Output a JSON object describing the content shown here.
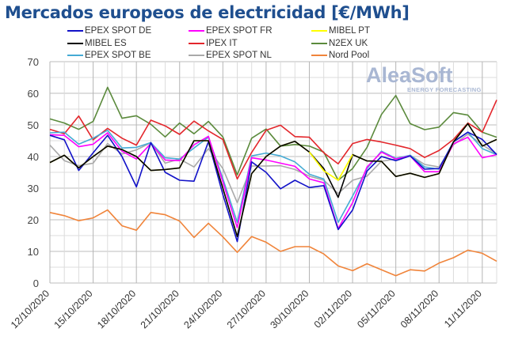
{
  "title": "Mercados europeos de electricidad [€/MWh]",
  "watermark": {
    "brand": "AleaSoft",
    "tagline": "ENERGY FORECASTING"
  },
  "chart_data": {
    "type": "line",
    "title": "Mercados europeos de electricidad [€/MWh]",
    "xlabel": "",
    "ylabel": "",
    "ylim": [
      0,
      70
    ],
    "yticks": [
      "0",
      "10",
      "20",
      "30",
      "40",
      "50",
      "60",
      "70"
    ],
    "grid": true,
    "legend_position": "top",
    "x": [
      "12/10/2020",
      "13/10/2020",
      "14/10/2020",
      "15/10/2020",
      "16/10/2020",
      "17/10/2020",
      "18/10/2020",
      "19/10/2020",
      "20/10/2020",
      "21/10/2020",
      "22/10/2020",
      "23/10/2020",
      "24/10/2020",
      "25/10/2020",
      "26/10/2020",
      "27/10/2020",
      "28/10/2020",
      "29/10/2020",
      "30/10/2020",
      "31/10/2020",
      "01/11/2020",
      "02/11/2020",
      "03/11/2020",
      "04/11/2020",
      "05/11/2020",
      "06/11/2020",
      "07/11/2020",
      "08/11/2020",
      "09/11/2020",
      "10/11/2020",
      "11/11/2020",
      "12/11/2020"
    ],
    "xtick_labels": [
      "12/10/2020",
      "15/10/2020",
      "18/10/2020",
      "21/10/2020",
      "24/10/2020",
      "27/10/2020",
      "30/10/2020",
      "02/11/2020",
      "05/11/2020",
      "08/11/2020",
      "11/11/2020"
    ],
    "series": [
      {
        "name": "EPEX SPOT DE",
        "color": "#1212c8",
        "values": [
          46.7,
          45.3,
          35.6,
          41.2,
          46.7,
          40.0,
          30.4,
          44.4,
          35.0,
          32.5,
          32.2,
          44.7,
          28.0,
          13.1,
          38.3,
          35.0,
          29.8,
          32.5,
          30.2,
          30.8,
          16.9,
          23.1,
          35.4,
          40.0,
          38.7,
          40.2,
          36.0,
          36.2,
          44.6,
          47.7,
          45.4,
          40.6
        ]
      },
      {
        "name": "EPEX SPOT FR",
        "color": "#ff00ff",
        "values": [
          46.9,
          46.7,
          43.1,
          43.9,
          47.5,
          41.7,
          39.2,
          44.1,
          38.9,
          38.7,
          43.7,
          46.4,
          32.0,
          17.5,
          39.6,
          38.9,
          37.9,
          36.9,
          32.9,
          31.7,
          17.2,
          25.4,
          36.7,
          41.4,
          39.2,
          40.2,
          35.2,
          35.2,
          44.0,
          46.1,
          39.6,
          40.6
        ]
      },
      {
        "name": "MIBEL PT",
        "color": "#ffff00",
        "values": [
          38.1,
          40.4,
          36.4,
          40.0,
          43.3,
          42.2,
          40.0,
          35.6,
          35.9,
          36.4,
          45.0,
          45.0,
          30.0,
          14.7,
          34.6,
          40.0,
          43.3,
          44.8,
          41.4,
          35.5,
          32.5,
          40.6,
          38.6,
          38.5,
          33.7,
          34.7,
          33.4,
          34.6,
          44.6,
          50.4,
          43.3,
          45.4
        ]
      },
      {
        "name": "MIBEL ES",
        "color": "#000000",
        "values": [
          38.1,
          40.4,
          36.4,
          40.0,
          43.3,
          42.2,
          40.0,
          35.6,
          35.9,
          36.4,
          45.0,
          45.0,
          30.0,
          14.7,
          34.6,
          40.0,
          43.3,
          44.8,
          41.4,
          36.2,
          27.1,
          40.6,
          38.6,
          38.5,
          33.7,
          34.7,
          33.4,
          34.6,
          44.6,
          50.4,
          43.3,
          45.4
        ]
      },
      {
        "name": "IPEX IT",
        "color": "#e3262b",
        "values": [
          48.6,
          47.2,
          52.8,
          45.3,
          48.9,
          45.8,
          43.6,
          51.5,
          49.7,
          47.0,
          51.2,
          48.1,
          45.4,
          32.9,
          41.3,
          48.3,
          49.9,
          46.3,
          46.1,
          41.2,
          37.7,
          44.1,
          45.4,
          44.6,
          43.6,
          42.5,
          39.7,
          41.9,
          45.4,
          50.6,
          47.7,
          57.9
        ]
      },
      {
        "name": "N2EX UK",
        "color": "#5b8a3c",
        "values": [
          51.9,
          50.6,
          48.6,
          51.1,
          61.9,
          52.1,
          52.9,
          50.2,
          46.2,
          50.6,
          47.2,
          51.1,
          46.2,
          34.2,
          45.8,
          48.7,
          43.3,
          43.8,
          43.3,
          41.4,
          32.5,
          36.2,
          42.9,
          53.3,
          59.3,
          50.4,
          48.5,
          49.3,
          53.9,
          53.1,
          47.7,
          46.1
        ]
      },
      {
        "name": "EPEX SPOT BE",
        "color": "#45abd4",
        "values": [
          47.5,
          47.7,
          43.9,
          45.8,
          48.3,
          42.7,
          42.9,
          44.4,
          39.6,
          39.2,
          42.7,
          46.1,
          33.0,
          19.2,
          40.2,
          41.1,
          40.2,
          38.3,
          34.4,
          32.9,
          19.2,
          27.5,
          36.2,
          41.7,
          39.4,
          40.4,
          36.7,
          36.0,
          44.7,
          47.7,
          42.5,
          40.6
        ]
      },
      {
        "name": "EPEX SPOT NL",
        "color": "#a9a9a9",
        "values": [
          43.6,
          38.7,
          37.1,
          37.9,
          44.1,
          40.8,
          42.1,
          44.4,
          37.9,
          39.2,
          36.7,
          42.5,
          36.2,
          25.4,
          37.0,
          37.0,
          37.1,
          35.9,
          33.8,
          32.5,
          28.3,
          32.5,
          33.8,
          38.5,
          39.2,
          40.4,
          37.5,
          36.7,
          43.7,
          47.1,
          43.7,
          40.8
        ]
      },
      {
        "name": "Nord Pool",
        "color": "#f0843a",
        "values": [
          22.3,
          21.3,
          19.7,
          20.6,
          23.1,
          18.1,
          16.7,
          22.3,
          21.6,
          19.6,
          14.4,
          18.9,
          14.6,
          9.7,
          14.7,
          12.9,
          10.0,
          11.5,
          11.5,
          9.2,
          5.4,
          3.9,
          6.1,
          4.2,
          2.3,
          4.2,
          3.8,
          6.3,
          8.0,
          10.4,
          9.4,
          6.9
        ]
      }
    ]
  }
}
